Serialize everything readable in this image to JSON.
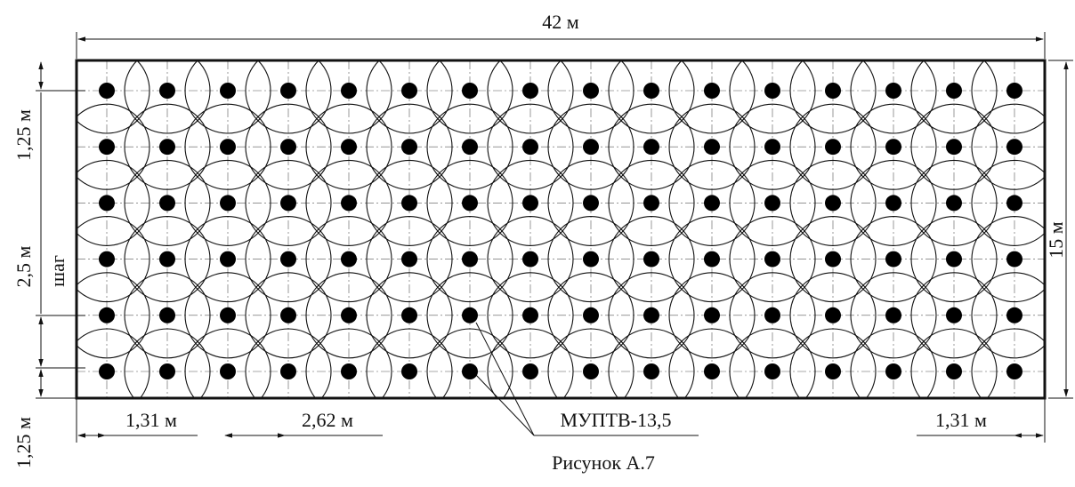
{
  "diagram": {
    "labels": {
      "total_width": "42 м",
      "total_height": "15 м",
      "top_margin": "1,25 м",
      "bottom_margin": "1,25 м",
      "spacing_vertical": "2,5 м",
      "step_word": "шаг",
      "left_margin": "1,31 м",
      "spacing_horizontal": "2,62 м",
      "right_margin": "1,31 м",
      "module_name": "МУПТВ-13,5"
    },
    "caption": "Рисунок А.7",
    "grid": {
      "columns": 16,
      "rows": 6
    },
    "colors": {
      "line": "#111111",
      "dot": "#000000",
      "axis": "#555555"
    }
  }
}
